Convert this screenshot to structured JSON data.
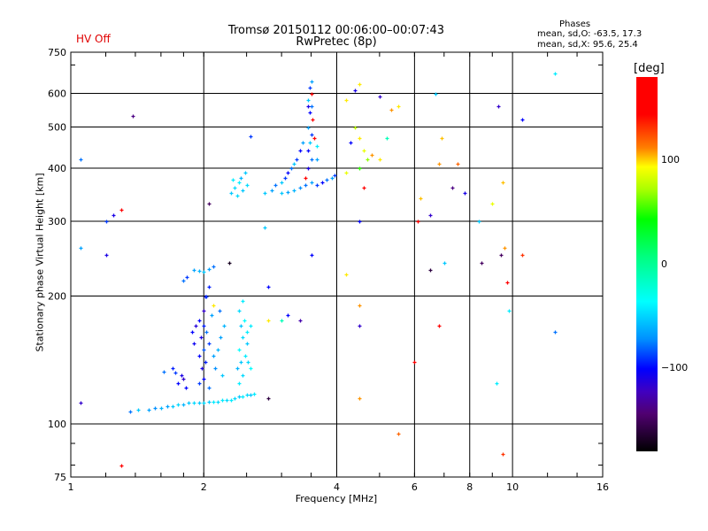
{
  "header": {
    "status": "HV Off",
    "title_line1": "Tromsø 20150112 00:06:00–00:07:43",
    "title_line2": "RwPretec (8p)",
    "phases_heading": "Phases",
    "phases_o": "mean, sd,O:  -63.5, 17.3",
    "phases_x": "mean, sd,X:  95.6, 25.4"
  },
  "colorbar": {
    "unit": "[deg]",
    "range": [
      -180,
      180
    ],
    "ticks": [
      {
        "value": 100,
        "label": "100"
      },
      {
        "value": 0,
        "label": "0"
      },
      {
        "value": -100,
        "label": "−100"
      }
    ]
  },
  "chart_data": {
    "type": "scatter",
    "title": "Tromsø 20150112 00:06:00–00:07:43 RwPretec (8p)",
    "xlabel": "Frequency [MHz]",
    "ylabel": "Stationary phase Virtual Height [km]",
    "xscale": "log",
    "yscale": "log",
    "xlim": [
      1,
      16
    ],
    "ylim": [
      75,
      750
    ],
    "grid": true,
    "x_ticks": [
      {
        "v": 1,
        "l": "1"
      },
      {
        "v": 2,
        "l": "2"
      },
      {
        "v": 4,
        "l": "4"
      },
      {
        "v": 6,
        "l": "6"
      },
      {
        "v": 8,
        "l": "8"
      },
      {
        "v": 10,
        "l": "10"
      },
      {
        "v": 16,
        "l": "16"
      }
    ],
    "x_grid": [
      2,
      4,
      6,
      8,
      10
    ],
    "y_ticks": [
      {
        "v": 75,
        "l": "75"
      },
      {
        "v": 100,
        "l": "100"
      },
      {
        "v": 200,
        "l": "200"
      },
      {
        "v": 300,
        "l": "300"
      },
      {
        "v": 400,
        "l": "400"
      },
      {
        "v": 500,
        "l": "500"
      },
      {
        "v": 600,
        "l": "600"
      },
      {
        "v": 750,
        "l": "750"
      }
    ],
    "y_grid": [
      100,
      200,
      300,
      400,
      500,
      600
    ],
    "color_variable": "phase [deg]",
    "point_fields": [
      "frequency_MHz",
      "height_km",
      "phase_deg"
    ],
    "points": [
      [
        1.36,
        107,
        -80
      ],
      [
        1.42,
        108,
        -60
      ],
      [
        1.5,
        108,
        -70
      ],
      [
        1.55,
        109,
        -75
      ],
      [
        1.6,
        109,
        -65
      ],
      [
        1.65,
        110,
        -70
      ],
      [
        1.7,
        110,
        -60
      ],
      [
        1.75,
        111,
        -55
      ],
      [
        1.8,
        111,
        -65
      ],
      [
        1.85,
        112,
        -60
      ],
      [
        1.9,
        112,
        -55
      ],
      [
        1.95,
        112,
        -60
      ],
      [
        2.0,
        112,
        -55
      ],
      [
        2.05,
        113,
        -60
      ],
      [
        2.1,
        113,
        -50
      ],
      [
        2.15,
        113,
        -55
      ],
      [
        2.2,
        114,
        -50
      ],
      [
        2.25,
        114,
        -55
      ],
      [
        2.3,
        114,
        -50
      ],
      [
        2.35,
        115,
        -55
      ],
      [
        2.4,
        116,
        -60
      ],
      [
        2.45,
        116,
        -50
      ],
      [
        2.5,
        117,
        -55
      ],
      [
        2.55,
        117,
        -60
      ],
      [
        2.6,
        118,
        -50
      ],
      [
        1.95,
        125,
        -90
      ],
      [
        2.0,
        128,
        -100
      ],
      [
        2.05,
        122,
        -80
      ],
      [
        1.98,
        135,
        -110
      ],
      [
        2.02,
        140,
        -95
      ],
      [
        1.95,
        145,
        -100
      ],
      [
        2.0,
        150,
        -85
      ],
      [
        2.05,
        155,
        -90
      ],
      [
        1.97,
        160,
        -110
      ],
      [
        2.03,
        165,
        -80
      ],
      [
        2.0,
        170,
        -95
      ],
      [
        1.95,
        175,
        -100
      ],
      [
        2.08,
        180,
        -70
      ],
      [
        2.0,
        185,
        -120
      ],
      [
        1.92,
        170,
        -115
      ],
      [
        2.1,
        145,
        -70
      ],
      [
        2.15,
        150,
        -65
      ],
      [
        2.12,
        135,
        -75
      ],
      [
        2.18,
        160,
        -70
      ],
      [
        2.2,
        130,
        -60
      ],
      [
        2.22,
        170,
        -65
      ],
      [
        2.17,
        185,
        -80
      ],
      [
        1.9,
        155,
        -105
      ],
      [
        1.88,
        165,
        -100
      ],
      [
        2.02,
        200,
        -100
      ],
      [
        2.05,
        210,
        -95
      ],
      [
        2.1,
        190,
        100
      ],
      [
        2.4,
        125,
        -50
      ],
      [
        2.45,
        130,
        -55
      ],
      [
        2.42,
        140,
        -60
      ],
      [
        2.48,
        145,
        -50
      ],
      [
        2.4,
        150,
        -45
      ],
      [
        2.45,
        160,
        -55
      ],
      [
        2.5,
        165,
        -50
      ],
      [
        2.42,
        170,
        -60
      ],
      [
        2.47,
        175,
        -45
      ],
      [
        2.4,
        185,
        -55
      ],
      [
        2.45,
        195,
        -50
      ],
      [
        2.5,
        155,
        -60
      ],
      [
        2.52,
        140,
        -55
      ],
      [
        2.55,
        135,
        -45
      ],
      [
        2.38,
        135,
        -65
      ],
      [
        2.55,
        170,
        -50
      ],
      [
        1.75,
        125,
        -100
      ],
      [
        1.78,
        130,
        -110
      ],
      [
        1.72,
        132,
        -90
      ],
      [
        1.8,
        128,
        -120
      ],
      [
        1.82,
        122,
        -100
      ],
      [
        1.62,
        133,
        -80
      ],
      [
        1.7,
        135,
        -95
      ],
      [
        1.8,
        218,
        -80
      ],
      [
        1.83,
        222,
        -90
      ],
      [
        1.9,
        230,
        -70
      ],
      [
        1.95,
        229,
        -65
      ],
      [
        2.0,
        228,
        -60
      ],
      [
        2.05,
        231,
        -70
      ],
      [
        2.1,
        235,
        -80
      ],
      [
        2.03,
        200,
        -90
      ],
      [
        2.3,
        350,
        -60
      ],
      [
        2.35,
        360,
        -55
      ],
      [
        2.4,
        370,
        -50
      ],
      [
        2.45,
        355,
        -60
      ],
      [
        2.5,
        365,
        -55
      ],
      [
        2.42,
        380,
        -65
      ],
      [
        2.38,
        345,
        -55
      ],
      [
        2.48,
        390,
        -60
      ],
      [
        2.33,
        375,
        -50
      ],
      [
        2.75,
        350,
        -60
      ],
      [
        2.85,
        355,
        -70
      ],
      [
        2.9,
        365,
        -80
      ],
      [
        3.0,
        370,
        -60
      ],
      [
        3.05,
        380,
        -90
      ],
      [
        3.1,
        390,
        -100
      ],
      [
        3.15,
        400,
        -80
      ],
      [
        3.2,
        410,
        -60
      ],
      [
        3.25,
        420,
        -90
      ],
      [
        3.3,
        440,
        -100
      ],
      [
        3.35,
        460,
        -70
      ],
      [
        3.0,
        350,
        -60
      ],
      [
        3.1,
        352,
        -70
      ],
      [
        3.2,
        355,
        -65
      ],
      [
        3.3,
        360,
        -75
      ],
      [
        3.4,
        365,
        -80
      ],
      [
        3.5,
        370,
        -70
      ],
      [
        3.6,
        365,
        -90
      ],
      [
        3.7,
        370,
        -100
      ],
      [
        3.8,
        375,
        -80
      ],
      [
        3.9,
        380,
        -70
      ],
      [
        3.95,
        385,
        -90
      ],
      [
        3.45,
        400,
        -110
      ],
      [
        3.5,
        420,
        -80
      ],
      [
        3.45,
        440,
        -100
      ],
      [
        3.48,
        460,
        -60
      ],
      [
        3.5,
        480,
        -90
      ],
      [
        3.45,
        500,
        -70
      ],
      [
        3.52,
        520,
        170
      ],
      [
        3.47,
        540,
        -100
      ],
      [
        3.5,
        560,
        -80
      ],
      [
        3.45,
        580,
        -60
      ],
      [
        3.5,
        600,
        160
      ],
      [
        3.48,
        620,
        -90
      ],
      [
        3.5,
        640,
        -70
      ],
      [
        3.45,
        560,
        -110
      ],
      [
        3.55,
        470,
        150
      ],
      [
        3.4,
        380,
        150
      ],
      [
        3.6,
        450,
        -50
      ],
      [
        3.6,
        420,
        -70
      ],
      [
        4.2,
        580,
        100
      ],
      [
        4.4,
        610,
        -110
      ],
      [
        4.5,
        630,
        100
      ],
      [
        4.4,
        500,
        80
      ],
      [
        4.5,
        470,
        100
      ],
      [
        4.3,
        460,
        -100
      ],
      [
        4.6,
        440,
        90
      ],
      [
        4.8,
        430,
        120
      ],
      [
        4.7,
        420,
        70
      ],
      [
        4.5,
        400,
        50
      ],
      [
        4.6,
        360,
        170
      ],
      [
        4.2,
        390,
        90
      ],
      [
        5.0,
        420,
        100
      ],
      [
        5.2,
        470,
        -20
      ],
      [
        5.3,
        550,
        120
      ],
      [
        5.0,
        590,
        -120
      ],
      [
        5.5,
        560,
        100
      ],
      [
        4.5,
        300,
        -100
      ],
      [
        6.1,
        300,
        170
      ],
      [
        6.2,
        340,
        110
      ],
      [
        6.5,
        310,
        -120
      ],
      [
        6.7,
        600,
        -60
      ],
      [
        6.9,
        470,
        110
      ],
      [
        6.8,
        410,
        120
      ],
      [
        7.5,
        410,
        130
      ],
      [
        7.3,
        360,
        -140
      ],
      [
        7.8,
        350,
        -110
      ],
      [
        8.4,
        300,
        -60
      ],
      [
        9.0,
        330,
        90
      ],
      [
        9.5,
        370,
        110
      ],
      [
        9.6,
        260,
        120
      ],
      [
        9.4,
        250,
        -150
      ],
      [
        9.7,
        215,
        160
      ],
      [
        9.8,
        185,
        -50
      ],
      [
        10.5,
        520,
        -100
      ],
      [
        9.3,
        560,
        -120
      ],
      [
        10.5,
        250,
        140
      ],
      [
        12.5,
        670,
        -50
      ],
      [
        12.5,
        165,
        -80
      ],
      [
        6.8,
        170,
        160
      ],
      [
        6.5,
        230,
        -160
      ],
      [
        4.5,
        190,
        120
      ],
      [
        4.2,
        225,
        100
      ],
      [
        5.5,
        95,
        130
      ],
      [
        4.5,
        115,
        120
      ],
      [
        4.5,
        170,
        -120
      ],
      [
        6.0,
        140,
        170
      ],
      [
        9.5,
        85,
        140
      ],
      [
        1.3,
        80,
        150
      ],
      [
        1.05,
        420,
        -80
      ],
      [
        1.05,
        260,
        -70
      ],
      [
        1.2,
        300,
        -90
      ],
      [
        1.25,
        310,
        -110
      ],
      [
        1.3,
        320,
        170
      ],
      [
        1.38,
        530,
        -140
      ],
      [
        1.2,
        250,
        -110
      ],
      [
        2.05,
        330,
        -150
      ],
      [
        2.28,
        240,
        -170
      ],
      [
        2.75,
        290,
        -60
      ],
      [
        2.8,
        210,
        -100
      ],
      [
        2.8,
        115,
        -160
      ],
      [
        2.55,
        475,
        -90
      ],
      [
        3.5,
        250,
        -100
      ],
      [
        3.3,
        175,
        -130
      ],
      [
        3.1,
        180,
        -100
      ],
      [
        2.8,
        175,
        100
      ],
      [
        3.0,
        175,
        -20
      ],
      [
        1.05,
        112,
        -120
      ],
      [
        9.2,
        125,
        -50
      ],
      [
        7.0,
        240,
        -60
      ],
      [
        8.5,
        240,
        -150
      ]
    ]
  }
}
